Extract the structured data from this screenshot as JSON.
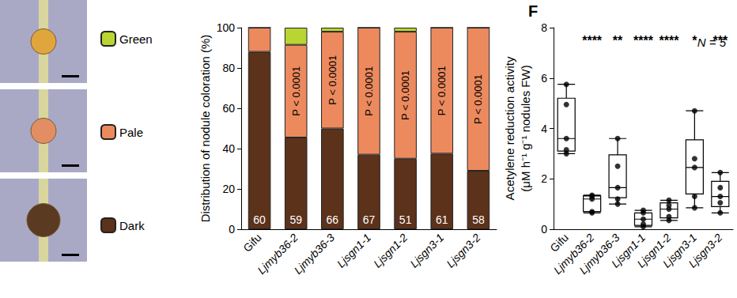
{
  "chart_data": [
    {
      "type": "bar",
      "stacked": true,
      "grid": false,
      "legend": "left",
      "y_label": "Distribution of nodule coloration (%)",
      "categories": [
        "Gifu",
        "Ljmyb36-2",
        "Ljmyb36-3",
        "Ljsgn1-1",
        "Ljsgn1-2",
        "Ljsgn3-1",
        "Ljsgn3-2"
      ],
      "series": [
        {
          "name": "Dark",
          "color": "#5c321b",
          "values": [
            88,
            45.5,
            50,
            37,
            35,
            37.5,
            29
          ]
        },
        {
          "name": "Pale",
          "color": "#ec8a5e",
          "values": [
            12,
            46,
            48,
            63,
            63,
            62.5,
            71
          ]
        },
        {
          "name": "Green",
          "color": "#b9d531",
          "values": [
            0,
            8.5,
            2,
            0,
            2,
            0,
            0
          ]
        }
      ],
      "n_labels": [
        60,
        59,
        66,
        67,
        51,
        61,
        58
      ],
      "p_labels": [
        null,
        "P < 0.0001",
        "P < 0.0001",
        "P < 0.0001",
        "P < 0.0001",
        "P < 0.0001",
        "P < 0.0001"
      ],
      "ylim": [
        0,
        100
      ],
      "yticks": [
        0,
        20,
        40,
        60,
        80,
        100
      ]
    },
    {
      "type": "boxplot",
      "panel": "F",
      "grid": false,
      "color": "#000000",
      "y_label": "Acetylene reduction activity\n(μM h⁻¹ g⁻¹ nodules FW)",
      "annotation": "N = 5",
      "categories": [
        "Gifu",
        "Ljmyb36-2",
        "Ljmyb36-3",
        "Ljsgn1-1",
        "Ljsgn1-2",
        "Ljsgn3-1",
        "Ljsgn3-2"
      ],
      "box": [
        [
          3.0,
          3.1,
          3.6,
          5.2,
          5.75
        ],
        [
          0.65,
          0.7,
          1.2,
          1.32,
          1.35
        ],
        [
          1.0,
          1.25,
          1.65,
          2.95,
          3.6
        ],
        [
          0.1,
          0.15,
          0.4,
          0.65,
          0.75
        ],
        [
          0.35,
          0.45,
          0.8,
          1.05,
          1.15
        ],
        [
          0.85,
          1.4,
          2.45,
          3.55,
          4.7
        ],
        [
          0.65,
          0.9,
          1.3,
          1.9,
          2.25
        ]
      ],
      "points": [
        [
          5.75,
          4.95,
          3.6,
          3.15,
          3.0
        ],
        [
          1.35,
          1.3,
          1.2,
          0.7,
          0.65
        ],
        [
          3.6,
          2.5,
          1.65,
          1.2,
          1.0
        ],
        [
          0.75,
          0.65,
          0.4,
          0.2,
          0.1
        ],
        [
          1.15,
          0.95,
          0.8,
          0.5,
          0.35
        ],
        [
          4.7,
          2.8,
          2.45,
          1.3,
          0.85
        ],
        [
          2.25,
          1.65,
          1.3,
          1.05,
          0.65
        ]
      ],
      "significance": [
        null,
        "****",
        "**",
        "****",
        "****",
        "*",
        "***"
      ],
      "ylim": [
        0,
        8
      ],
      "yticks": [
        0,
        2,
        4,
        6,
        8
      ]
    }
  ]
}
